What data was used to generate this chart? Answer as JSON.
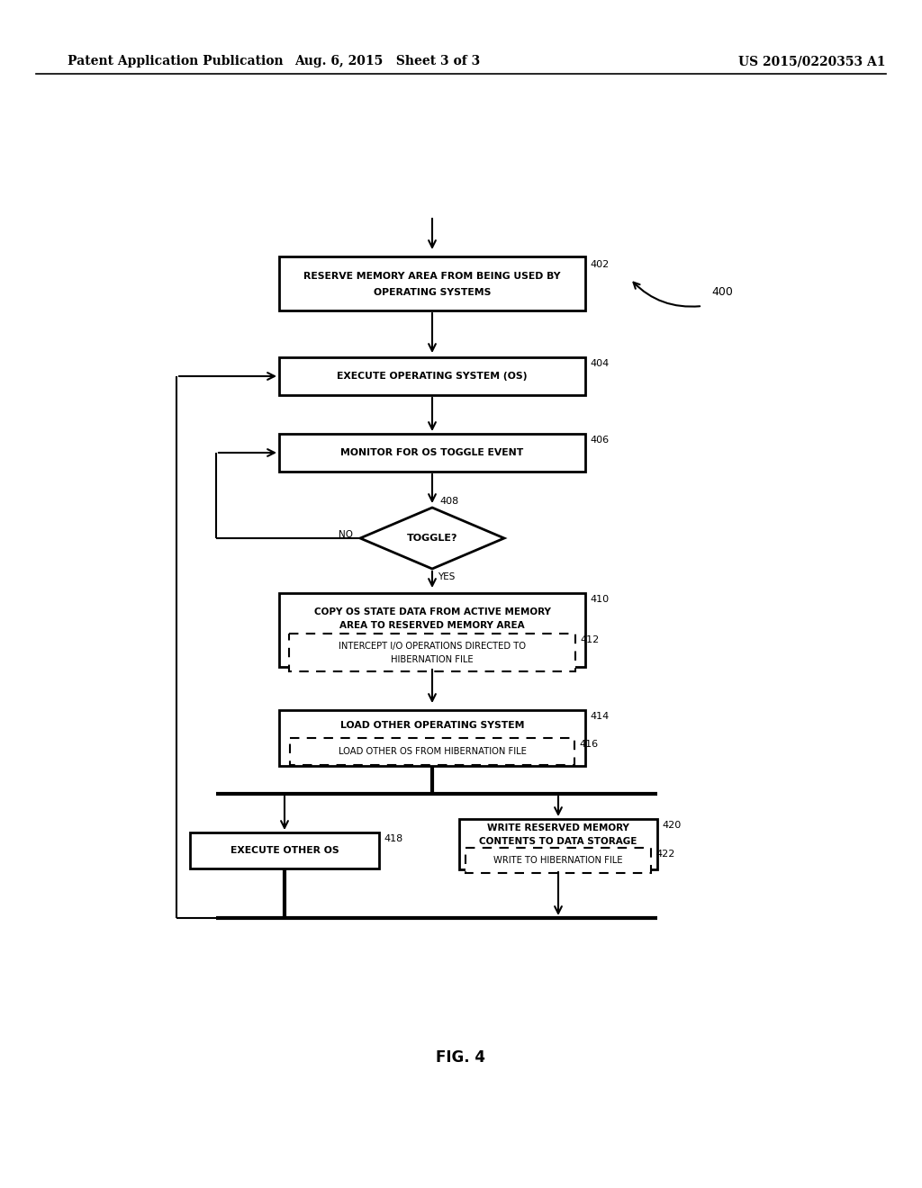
{
  "bg_color": "#ffffff",
  "header_left": "Patent Application Publication",
  "header_mid": "Aug. 6, 2015   Sheet 3 of 3",
  "header_right": "US 2015/0220353 A1",
  "fig_label": "FIG. 4",
  "diagram_label": "400"
}
